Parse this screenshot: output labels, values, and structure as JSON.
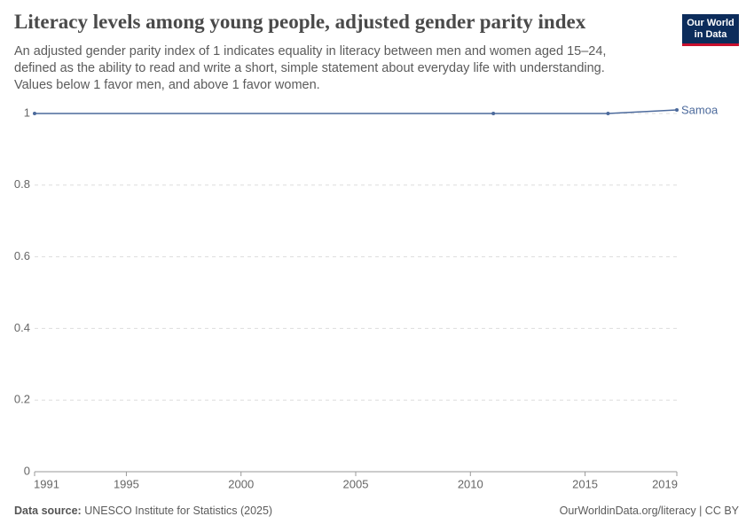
{
  "chart_data": {
    "type": "line",
    "title": "Literacy levels among young people, adjusted gender parity index",
    "subtitle": "An adjusted gender parity index of 1 indicates equality in literacy between men and women aged 15–24, defined as the ability to read and write a short, simple statement about everyday life with understanding. Values below 1 favor men, and above 1 favor women.",
    "logo": "Our World in Data",
    "source_label": "Data source:",
    "source": "UNESCO Institute for Statistics (2025)",
    "credit": "OurWorldinData.org/literacy | CC BY",
    "x": [
      1991,
      2011,
      2016,
      2019
    ],
    "series": [
      {
        "name": "Samoa",
        "color": "#4c6a9c",
        "values": [
          1,
          1,
          1,
          1.01
        ]
      }
    ],
    "xlim": [
      1991,
      2019
    ],
    "xticks": [
      1991,
      1995,
      2000,
      2005,
      2010,
      2015,
      2019
    ],
    "ylim": [
      0,
      1
    ],
    "yticks": [
      0,
      0.2,
      0.4,
      0.6,
      0.8,
      1
    ],
    "grid": true
  }
}
